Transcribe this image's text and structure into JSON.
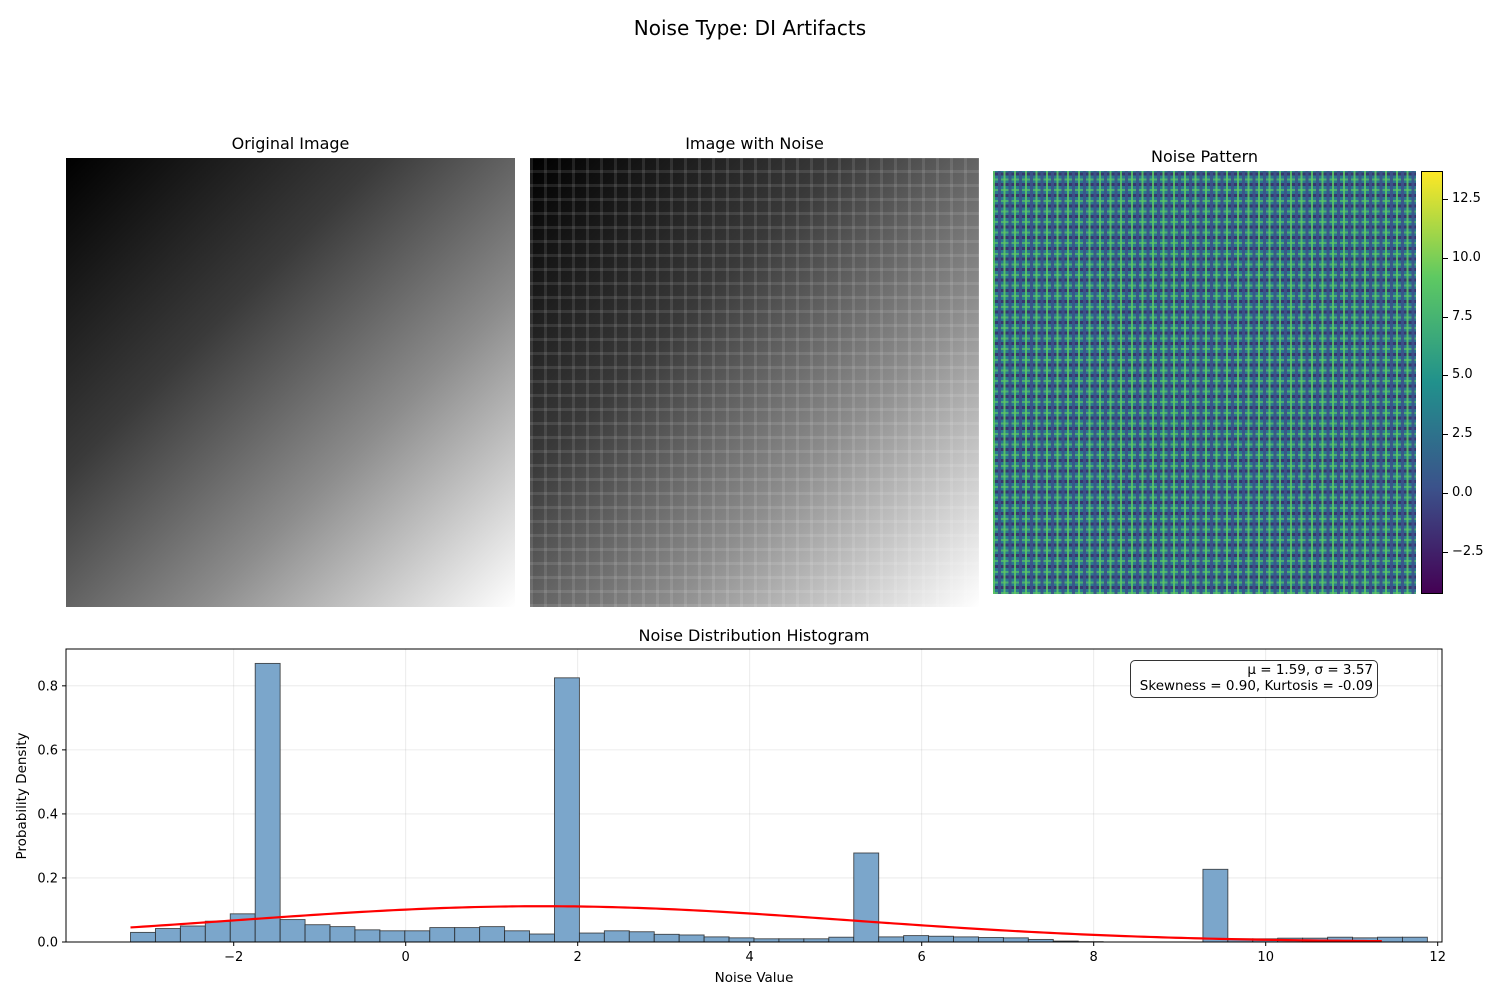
{
  "suptitle": "Noise Type: DI Artifacts",
  "panels": {
    "original": {
      "title": "Original Image"
    },
    "noisy": {
      "title": "Image with Noise"
    },
    "noise": {
      "title": "Noise Pattern"
    }
  },
  "colorbar": {
    "colormap": "viridis",
    "range": [
      -4.3,
      13.7
    ],
    "ticks": [
      -2.5,
      0.0,
      2.5,
      5.0,
      7.5,
      10.0,
      12.5
    ],
    "tick_labels": [
      "−2.5",
      "0.0",
      "2.5",
      "5.0",
      "7.5",
      "10.0",
      "12.5"
    ]
  },
  "stats": {
    "line1": "μ = 1.59, σ = 3.57",
    "line2": "Skewness = 0.90, Kurtosis = -0.09"
  },
  "chart_data": {
    "type": "bar",
    "title": "Noise Distribution Histogram",
    "xlabel": "Noise Value",
    "ylabel": "Probability Density",
    "xlim": [
      -3.95,
      12.05
    ],
    "ylim": [
      0,
      0.915
    ],
    "grid": true,
    "x_ticks": [
      -2,
      0,
      2,
      4,
      6,
      8,
      10,
      12
    ],
    "x_tick_labels": [
      "−2",
      "0",
      "2",
      "4",
      "6",
      "8",
      "10",
      "12"
    ],
    "y_ticks": [
      0.0,
      0.2,
      0.4,
      0.6,
      0.8
    ],
    "y_tick_labels": [
      "0.0",
      "0.2",
      "0.4",
      "0.6",
      "0.8"
    ],
    "bar_color": "#7ba6cb",
    "bin_start": -3.2,
    "bin_width": 0.29,
    "values": [
      0.03,
      0.042,
      0.05,
      0.065,
      0.088,
      0.87,
      0.07,
      0.054,
      0.048,
      0.038,
      0.035,
      0.035,
      0.045,
      0.045,
      0.048,
      0.035,
      0.025,
      0.825,
      0.028,
      0.035,
      0.032,
      0.024,
      0.022,
      0.016,
      0.013,
      0.01,
      0.01,
      0.01,
      0.015,
      0.278,
      0.016,
      0.02,
      0.018,
      0.016,
      0.014,
      0.013,
      0.008,
      0.003,
      0.001,
      0.0,
      0.0,
      0.0,
      0.0,
      0.227,
      0.01,
      0.01,
      0.012,
      0.012,
      0.015,
      0.013,
      0.015,
      0.015
    ],
    "fit_curve": {
      "type": "normal",
      "mu": 1.59,
      "sigma": 3.57,
      "x_range": [
        -3.2,
        11.35
      ],
      "color": "#ff0000"
    }
  }
}
